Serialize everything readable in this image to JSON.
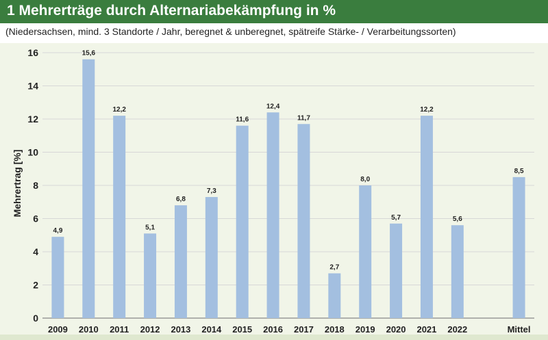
{
  "title": "1 Mehrerträge durch Alternariabekämpfung in %",
  "subtitle": "(Niedersachsen, mind. 3 Standorte / Jahr, beregnet & unberegnet, spätreife Stärke- / Verarbeitungssorten)",
  "colors": {
    "header": "#3a7d3e",
    "bar": "#a3bfe0",
    "plot_background": "#f1f5e8",
    "grid": "#d7d7d7"
  },
  "chart_data": {
    "type": "bar",
    "title": "",
    "xlabel": "",
    "ylabel": "Mehrertrag [%]",
    "ylim": [
      0,
      16
    ],
    "yticks": [
      0,
      2,
      4,
      6,
      8,
      10,
      12,
      14,
      16
    ],
    "grid": true,
    "categories": [
      "2009",
      "2010",
      "2011",
      "2012",
      "2013",
      "2014",
      "2015",
      "2016",
      "2017",
      "2018",
      "2019",
      "2020",
      "2021",
      "2022",
      "",
      "Mittel"
    ],
    "values": [
      4.9,
      15.6,
      12.2,
      5.1,
      6.8,
      7.3,
      11.6,
      12.4,
      11.7,
      2.7,
      8.0,
      5.7,
      12.2,
      5.6,
      null,
      8.5
    ],
    "value_labels": [
      "4,9",
      "15,6",
      "12,2",
      "5,1",
      "6,8",
      "7,3",
      "11,6",
      "12,4",
      "11,7",
      "2,7",
      "8,0",
      "5,7",
      "12,2",
      "5,6",
      "",
      "8,5"
    ]
  }
}
